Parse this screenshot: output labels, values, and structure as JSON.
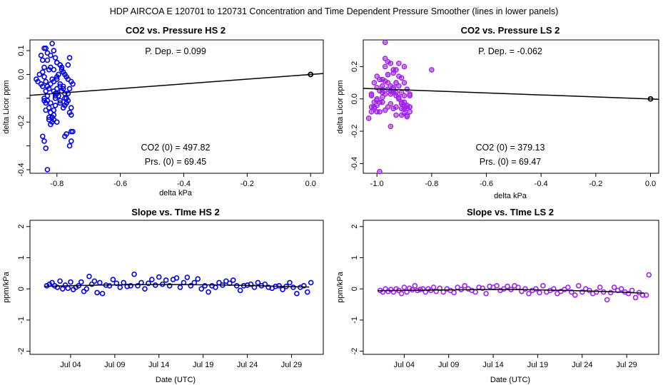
{
  "header": {
    "title": "HDP   AIRCOA E   120701 to 120731   Concentration and Time Dependent Pressure Smoother (lines in lower panels)"
  },
  "colors": {
    "hs": "#0000ee",
    "ls": "#a020f0",
    "axis": "#000000"
  },
  "chart_data": [
    {
      "id": "p1",
      "type": "scatter",
      "title": "CO2 vs. Pressure HS 2",
      "xlabel": "delta kPa",
      "ylabel": "delta Licor ppm",
      "xlim": [
        -0.885,
        0.04
      ],
      "ylim": [
        -0.415,
        0.145
      ],
      "xticks": [
        -0.8,
        -0.6,
        -0.4,
        -0.2,
        0.0
      ],
      "xtick_labels": [
        "-0.8",
        "-0.6",
        "-0.4",
        "-0.2",
        "0.0"
      ],
      "yticks": [
        -0.4,
        -0.3,
        -0.2,
        -0.1,
        0.0,
        0.1
      ],
      "ytick_labels": [
        "-0.4",
        "",
        "-0.2",
        "",
        "0.0",
        "0.1"
      ],
      "annotations": {
        "p_dep": "P. Dep. =  0.099",
        "co2_0": "CO2 (0) =  497.82",
        "prs_0": "Prs. (0) =  69.45"
      },
      "color": "#0000ee",
      "fit_line": {
        "x": [
          -0.885,
          0.04
        ],
        "y": [
          -0.0876,
          0.004
        ]
      },
      "anchor_point": {
        "x": 0.0,
        "y": 0.0
      },
      "x": [
        -0.835,
        -0.83,
        -0.845,
        -0.84,
        -0.825,
        -0.815,
        -0.81,
        -0.82,
        -0.805,
        -0.8,
        -0.79,
        -0.785,
        -0.78,
        -0.775,
        -0.77,
        -0.765,
        -0.76,
        -0.755,
        -0.75,
        -0.845,
        -0.85,
        -0.86,
        -0.855,
        -0.865,
        -0.835,
        -0.83,
        -0.825,
        -0.82,
        -0.815,
        -0.81,
        -0.805,
        -0.8,
        -0.84,
        -0.835,
        -0.83,
        -0.825,
        -0.82,
        -0.815,
        -0.81,
        -0.805,
        -0.8,
        -0.795,
        -0.79,
        -0.785,
        -0.78,
        -0.775,
        -0.77,
        -0.765,
        -0.76,
        -0.755,
        -0.845,
        -0.84,
        -0.835,
        -0.83,
        -0.825,
        -0.82,
        -0.815,
        -0.81,
        -0.805,
        -0.8,
        -0.795,
        -0.79,
        -0.785,
        -0.775,
        -0.77,
        -0.76,
        -0.755,
        -0.85,
        -0.845,
        -0.84,
        -0.835,
        -0.83,
        -0.82,
        -0.81,
        -0.8,
        -0.79,
        -0.78,
        -0.77,
        -0.76,
        -0.75,
        -0.84,
        -0.83,
        -0.82,
        -0.81,
        -0.8,
        -0.79,
        -0.78,
        -0.775,
        -0.765,
        -0.755,
        -0.84,
        -0.835,
        -0.825,
        -0.81,
        -0.805,
        -0.8,
        -0.79,
        -0.775,
        -0.765,
        -0.755
      ],
      "y": [
        0.11,
        0.09,
        0.06,
        0.03,
        0.02,
        0.13,
        0.1,
        0.08,
        0.07,
        0.05,
        0.04,
        0.03,
        0.01,
        0.0,
        -0.01,
        -0.02,
        0.07,
        -0.03,
        -0.04,
        -0.05,
        -0.04,
        -0.03,
        0.0,
        -0.02,
        -0.03,
        -0.05,
        -0.06,
        -0.04,
        -0.02,
        -0.07,
        -0.08,
        -0.06,
        -0.1,
        -0.12,
        -0.11,
        -0.14,
        -0.16,
        -0.18,
        -0.15,
        -0.13,
        -0.2,
        -0.09,
        -0.11,
        -0.07,
        -0.05,
        -0.1,
        -0.12,
        -0.08,
        -0.06,
        -0.14,
        -0.26,
        -0.28,
        -0.31,
        -0.4,
        -0.19,
        -0.21,
        -0.2,
        -0.17,
        -0.09,
        -0.02,
        0.0,
        0.04,
        0.02,
        -0.13,
        -0.1,
        -0.16,
        -0.17,
        0.08,
        0.01,
        -0.01,
        -0.07,
        -0.09,
        -0.12,
        -0.03,
        0.05,
        -0.05,
        -0.14,
        -0.25,
        -0.3,
        -0.24,
        0.11,
        0.06,
        0.03,
        0.02,
        -0.01,
        -0.04,
        -0.06,
        -0.08,
        -0.11,
        -0.28,
        -0.11,
        -0.15,
        -0.18,
        -0.19,
        -0.1,
        -0.08,
        -0.12,
        -0.26,
        0.04,
        -0.24
      ]
    },
    {
      "id": "p2",
      "type": "scatter",
      "title": "CO2 vs. Pressure LS 2",
      "xlabel": "delta kPa",
      "ylabel": "delta Licor ppm",
      "xlim": [
        -1.05,
        0.03
      ],
      "ylim": [
        -0.46,
        0.365
      ],
      "xticks": [
        -1.0,
        -0.8,
        -0.6,
        -0.4,
        -0.2,
        0.0
      ],
      "xtick_labels": [
        "-1.0",
        "-0.8",
        "-0.6",
        "-0.4",
        "-0.2",
        "0.0"
      ],
      "yticks": [
        -0.4,
        -0.2,
        0.0,
        0.2
      ],
      "ytick_labels": [
        "-0.4",
        "-0.2",
        "0.0",
        "0.2"
      ],
      "annotations": {
        "p_dep": "P. Dep. =  -0.062",
        "co2_0": "CO2 (0) =  379.13",
        "prs_0": "Prs. (0) =  69.47"
      },
      "color": "#a020f0",
      "fit_line": {
        "x": [
          -1.05,
          0.03
        ],
        "y": [
          0.0651,
          -0.0019
        ]
      },
      "anchor_point": {
        "x": 0.0,
        "y": 0.0
      },
      "x": [
        -1.02,
        -1.01,
        -1.0,
        -0.99,
        -0.98,
        -0.97,
        -0.96,
        -0.95,
        -0.94,
        -0.93,
        -0.92,
        -0.91,
        -0.9,
        -0.89,
        -0.88,
        -1.02,
        -1.01,
        -1.0,
        -0.99,
        -0.98,
        -0.97,
        -0.96,
        -0.95,
        -0.94,
        -0.93,
        -0.92,
        -0.91,
        -0.9,
        -0.89,
        -0.88,
        -1.03,
        -1.02,
        -1.01,
        -1.0,
        -0.99,
        -0.98,
        -0.97,
        -0.96,
        -0.95,
        -0.94,
        -0.93,
        -0.92,
        -0.91,
        -0.9,
        -0.89,
        -0.88,
        -1.02,
        -1.0,
        -0.98,
        -0.96,
        -0.94,
        -0.92,
        -0.9,
        -0.88,
        -1.01,
        -0.99,
        -0.97,
        -0.95,
        -0.93,
        -0.91,
        -0.89,
        -1.0,
        -0.98,
        -0.96,
        -0.94,
        -0.92,
        -0.9,
        -0.95,
        -0.93,
        -0.91,
        -0.89,
        -0.97,
        -0.96,
        -0.94,
        -0.92,
        -0.9,
        -1.0,
        -0.98,
        -0.95,
        -0.93,
        -0.8,
        -0.97,
        -0.9,
        -0.88,
        -0.99,
        -0.95,
        -0.93,
        -0.91
      ],
      "y": [
        0.02,
        0.1,
        0.14,
        0.12,
        0.08,
        0.2,
        0.15,
        0.05,
        0.06,
        0.1,
        0.08,
        0.04,
        -0.02,
        -0.06,
        0.03,
        -0.05,
        -0.02,
        0.0,
        0.05,
        0.06,
        0.11,
        0.1,
        0.03,
        0.04,
        0.02,
        0.01,
        -0.03,
        0.02,
        -0.04,
        -0.05,
        -0.12,
        -0.08,
        -0.06,
        -0.04,
        -0.02,
        0.01,
        0.03,
        0.06,
        0.05,
        0.07,
        0.04,
        0.0,
        -0.02,
        -0.09,
        -0.1,
        -0.08,
        0.03,
        0.07,
        0.12,
        0.15,
        0.18,
        0.22,
        0.1,
        0.02,
        -0.05,
        -0.08,
        -0.07,
        -0.03,
        -0.05,
        -0.1,
        -0.11,
        -0.08,
        -0.02,
        -0.05,
        -0.06,
        0.0,
        -0.04,
        0.22,
        0.18,
        0.13,
        0.06,
        0.25,
        0.23,
        0.16,
        0.14,
        0.2,
        -0.01,
        0.04,
        0.08,
        0.1,
        0.18,
        0.35,
        -0.06,
        -0.05,
        -0.45,
        -0.17,
        -0.1,
        -0.06
      ],
      "marker_extra": "star"
    },
    {
      "id": "p3",
      "type": "scatter",
      "title": "Slope vs. TIme HS 2",
      "xlabel": "Date (UTC)",
      "ylabel": "ppm/kPa",
      "xlim": [
        -1.6,
        31.6
      ],
      "ylim": [
        -2.1,
        2.2
      ],
      "xticks": [
        3,
        8,
        13,
        18,
        23,
        28
      ],
      "xtick_labels": [
        "Jul 04",
        "Jul 09",
        "Jul 14",
        "Jul 19",
        "Jul 24",
        "Jul 29"
      ],
      "yticks": [
        -2,
        -1,
        0,
        1,
        2
      ],
      "ytick_labels": [
        "-2",
        "-1",
        "0",
        "1",
        "2"
      ],
      "color": "#0000ee",
      "fit_line": {
        "x": [
          0.0,
          3.0,
          6.0,
          9.0,
          12.0,
          15.0,
          18.0,
          21.0,
          24.0,
          27.0,
          30.0
        ],
        "y": [
          0.08,
          0.1,
          0.12,
          0.13,
          0.14,
          0.14,
          0.13,
          0.12,
          0.1,
          0.08,
          0.06
        ]
      },
      "x": [
        0.3,
        0.6,
        0.9,
        1.2,
        1.5,
        1.8,
        2.1,
        2.4,
        2.7,
        3.0,
        3.3,
        3.6,
        3.9,
        4.2,
        4.5,
        4.8,
        5.1,
        5.4,
        5.7,
        6.0,
        6.3,
        6.6,
        7.0,
        7.4,
        7.8,
        8.2,
        8.6,
        9.0,
        9.4,
        9.8,
        10.2,
        10.6,
        11.0,
        11.4,
        11.8,
        12.2,
        12.6,
        13.0,
        13.4,
        13.8,
        14.2,
        14.6,
        15.0,
        15.4,
        15.8,
        16.2,
        16.6,
        17.0,
        17.4,
        17.8,
        18.2,
        18.6,
        19.0,
        19.4,
        19.8,
        20.2,
        20.6,
        21.0,
        21.4,
        21.8,
        22.2,
        22.6,
        23.0,
        23.4,
        23.8,
        24.2,
        24.6,
        25.0,
        25.4,
        25.8,
        26.2,
        26.6,
        27.0,
        27.4,
        27.8,
        28.2,
        28.6,
        29.0,
        29.4,
        29.8,
        30.2
      ],
      "y": [
        0.1,
        0.15,
        0.2,
        0.1,
        0.05,
        0.25,
        0.0,
        0.12,
        0.02,
        0.22,
        -0.02,
        0.05,
        0.1,
        0.22,
        -0.08,
        0.0,
        0.4,
        0.15,
        0.25,
        -0.12,
        0.2,
        -0.15,
        0.12,
        0.1,
        0.3,
        0.18,
        0.05,
        0.2,
        0.08,
        0.1,
        0.47,
        0.1,
        0.2,
        0.0,
        0.18,
        0.3,
        0.12,
        0.38,
        0.15,
        0.28,
        0.1,
        0.3,
        0.35,
        0.05,
        0.2,
        0.37,
        0.1,
        0.2,
        0.32,
        0.0,
        0.1,
        -0.1,
        0.1,
        0.05,
        0.2,
        0.12,
        0.25,
        0.18,
        0.28,
        0.1,
        -0.05,
        0.1,
        0.12,
        0.15,
        0.05,
        0.2,
        0.1,
        0.15,
        0.05,
        0.02,
        0.08,
        0.1,
        -0.02,
        0.08,
        0.2,
        0.05,
        -0.15,
        0.05,
        0.1,
        -0.1,
        0.2
      ]
    },
    {
      "id": "p4",
      "type": "scatter",
      "title": "Slope vs. TIme LS 2",
      "xlabel": "Date (UTC)",
      "ylabel": "ppm/kPa",
      "xlim": [
        -1.6,
        31.6
      ],
      "ylim": [
        -2.1,
        2.2
      ],
      "xticks": [
        3,
        8,
        13,
        18,
        23,
        28
      ],
      "xtick_labels": [
        "Jul 04",
        "Jul 09",
        "Jul 14",
        "Jul 19",
        "Jul 24",
        "Jul 29"
      ],
      "yticks": [
        -2,
        -1,
        0,
        1,
        2
      ],
      "ytick_labels": [
        "-2",
        "-1",
        "0",
        "1",
        "2"
      ],
      "color": "#a020f0",
      "fit_line": {
        "x": [
          0.0,
          3.0,
          6.0,
          9.0,
          12.0,
          15.0,
          18.0,
          21.0,
          24.0,
          27.0,
          30.0
        ],
        "y": [
          -0.06,
          -0.05,
          -0.04,
          -0.03,
          -0.02,
          -0.02,
          -0.03,
          -0.05,
          -0.07,
          -0.1,
          -0.14
        ]
      },
      "x": [
        0.3,
        0.6,
        0.9,
        1.2,
        1.5,
        1.8,
        2.1,
        2.4,
        2.7,
        3.0,
        3.3,
        3.6,
        3.9,
        4.2,
        4.5,
        4.8,
        5.1,
        5.4,
        5.7,
        6.0,
        6.3,
        6.6,
        7.0,
        7.4,
        7.8,
        8.2,
        8.6,
        9.0,
        9.4,
        9.8,
        10.2,
        10.6,
        11.0,
        11.4,
        11.8,
        12.2,
        12.6,
        13.0,
        13.4,
        13.8,
        14.2,
        14.6,
        15.0,
        15.4,
        15.8,
        16.2,
        16.6,
        17.0,
        17.4,
        17.8,
        18.2,
        18.6,
        19.0,
        19.4,
        19.8,
        20.2,
        20.6,
        21.0,
        21.4,
        21.8,
        22.2,
        22.6,
        23.0,
        23.4,
        23.8,
        24.2,
        24.6,
        25.0,
        25.4,
        25.8,
        26.2,
        26.6,
        27.0,
        27.4,
        27.8,
        28.2,
        28.6,
        29.0,
        29.4,
        29.8,
        30.2,
        30.5
      ],
      "y": [
        -0.05,
        -0.1,
        0.0,
        -0.08,
        -0.02,
        -0.1,
        0.0,
        -0.05,
        -0.15,
        0.05,
        -0.1,
        0.02,
        -0.03,
        0.1,
        -0.05,
        -0.02,
        0.0,
        -0.1,
        0.0,
        -0.05,
        0.05,
        -0.08,
        0.02,
        -0.1,
        0.0,
        -0.05,
        -0.12,
        0.05,
        -0.02,
        0.1,
        0.0,
        -0.05,
        -0.1,
        0.05,
        0.02,
        -0.15,
        0.08,
        0.05,
        0.1,
        -0.05,
        0.0,
        0.08,
        -0.02,
        0.1,
        0.05,
        -0.08,
        0.0,
        -0.15,
        -0.05,
        0.0,
        -0.12,
        0.1,
        -0.1,
        -0.05,
        0.0,
        -0.15,
        -0.08,
        -0.02,
        0.05,
        -0.1,
        -0.2,
        0.1,
        -0.1,
        0.0,
        -0.05,
        -0.15,
        -0.1,
        0.05,
        -0.1,
        -0.35,
        -0.12,
        0.05,
        -0.05,
        0.0,
        -0.1,
        -0.15,
        -0.05,
        -0.28,
        -0.12,
        -0.2,
        -0.2,
        0.45
      ]
    }
  ]
}
